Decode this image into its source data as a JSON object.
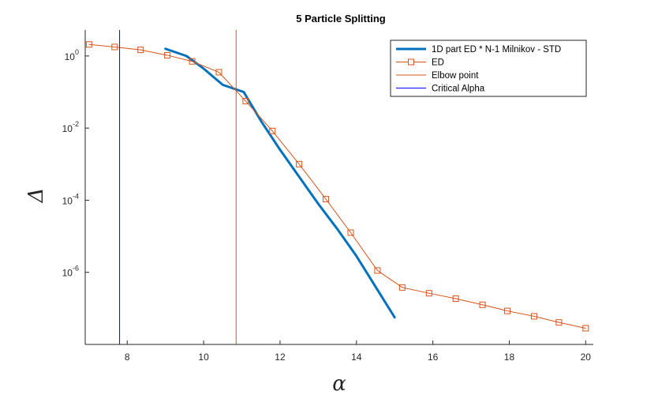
{
  "chart_data": {
    "type": "line",
    "title": "5 Particle Splitting",
    "xlabel": "α",
    "ylabel": "Δ",
    "xlim": [
      6.9,
      20.2
    ],
    "xticks": [
      8,
      10,
      12,
      14,
      16,
      18,
      20
    ],
    "y_scale": "log",
    "ylog_range": [
      -8.0,
      0.72
    ],
    "ytick_exponents": [
      0,
      -2,
      -4,
      -6
    ],
    "ytick_base": "10",
    "grid": false,
    "legend_position": "top-right",
    "series": [
      {
        "name": "1D part ED * N-1 Milnikov - STD",
        "color": "#0072BD",
        "style": "thick-line",
        "x": [
          9.0,
          9.55,
          10.0,
          10.5,
          11.05,
          11.5,
          12.0,
          12.5,
          13.0,
          13.5,
          14.0,
          14.5,
          15.0
        ],
        "log10_y": [
          0.2,
          0.0,
          -0.35,
          -0.8,
          -1.0,
          -1.8,
          -2.6,
          -3.35,
          -4.1,
          -4.8,
          -5.55,
          -6.4,
          -7.25
        ]
      },
      {
        "name": "ED",
        "color": "#D95319",
        "style": "line-square-markers",
        "x": [
          7.0,
          7.67,
          8.35,
          9.05,
          9.7,
          10.4,
          11.1,
          11.8,
          12.5,
          13.2,
          13.85,
          14.55,
          15.2,
          15.9,
          16.6,
          17.3,
          17.95,
          18.65,
          19.3,
          20.0
        ],
        "log10_y": [
          0.32,
          0.25,
          0.17,
          0.02,
          -0.15,
          -0.45,
          -1.25,
          -2.08,
          -3.0,
          -3.97,
          -4.9,
          -5.95,
          -6.42,
          -6.58,
          -6.73,
          -6.9,
          -7.07,
          -7.22,
          -7.39,
          -7.55
        ]
      },
      {
        "name": "Elbow point",
        "color": "#D95319",
        "style": "vertical-line",
        "x_value": 10.85
      },
      {
        "name": "Critical Alpha",
        "color": "#0000FF",
        "style": "vertical-line",
        "x_value": 7.8
      }
    ]
  }
}
